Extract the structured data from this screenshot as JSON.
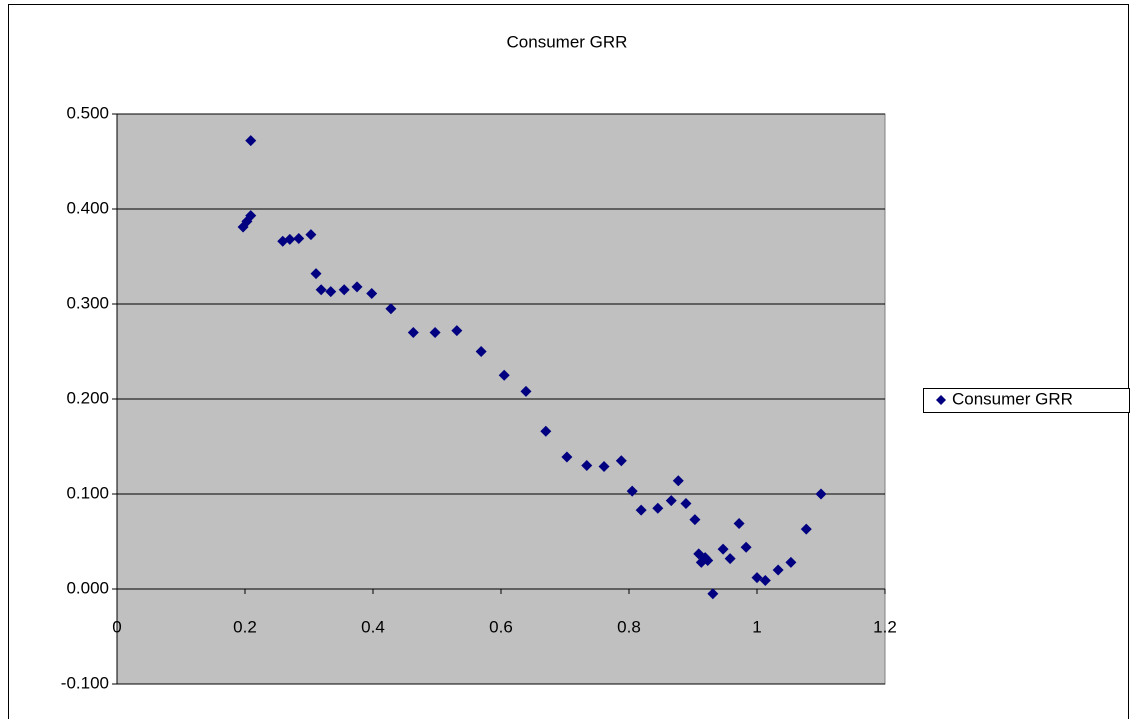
{
  "chart_data": {
    "type": "scatter",
    "title": "Consumer GRR",
    "series": [
      {
        "name": "Consumer GRR",
        "color": "#000080",
        "x": [
          0.197,
          0.203,
          0.209,
          0.209,
          0.259,
          0.27,
          0.284,
          0.303,
          0.311,
          0.319,
          0.334,
          0.355,
          0.375,
          0.398,
          0.428,
          0.463,
          0.497,
          0.531,
          0.569,
          0.605,
          0.639,
          0.67,
          0.703,
          0.734,
          0.761,
          0.788,
          0.805,
          0.819,
          0.845,
          0.866,
          0.877,
          0.889,
          0.903,
          0.909,
          0.913,
          0.919,
          0.923,
          0.931,
          0.947,
          0.958,
          0.972,
          0.983,
          1.0,
          1.013,
          1.033,
          1.053,
          1.077,
          1.1
        ],
        "values": [
          0.381,
          0.387,
          0.393,
          0.472,
          0.366,
          0.368,
          0.369,
          0.373,
          0.332,
          0.315,
          0.313,
          0.315,
          0.318,
          0.311,
          0.295,
          0.27,
          0.27,
          0.272,
          0.25,
          0.225,
          0.208,
          0.166,
          0.139,
          0.13,
          0.129,
          0.135,
          0.103,
          0.083,
          0.085,
          0.093,
          0.114,
          0.09,
          0.073,
          0.037,
          0.028,
          0.033,
          0.03,
          -0.005,
          0.042,
          0.032,
          0.069,
          0.044,
          0.012,
          0.009,
          0.02,
          0.028,
          0.063,
          0.1
        ]
      }
    ],
    "xlim": [
      0,
      1.2
    ],
    "xticks": [
      0,
      0.2,
      0.4,
      0.6,
      0.8,
      1,
      1.2
    ],
    "ylim": [
      -0.1,
      0.5
    ],
    "yticks": [
      {
        "value": -0.1,
        "label": "-0.100"
      },
      {
        "value": 0,
        "label": "0.000"
      },
      {
        "value": 0.1,
        "label": "0.100"
      },
      {
        "value": 0.2,
        "label": "0.200"
      },
      {
        "value": 0.3,
        "label": "0.300"
      },
      {
        "value": 0.4,
        "label": "0.400"
      },
      {
        "value": 0.5,
        "label": "0.500"
      }
    ],
    "grid": true,
    "legend": "right",
    "plot_background": "#c0c0c0"
  }
}
